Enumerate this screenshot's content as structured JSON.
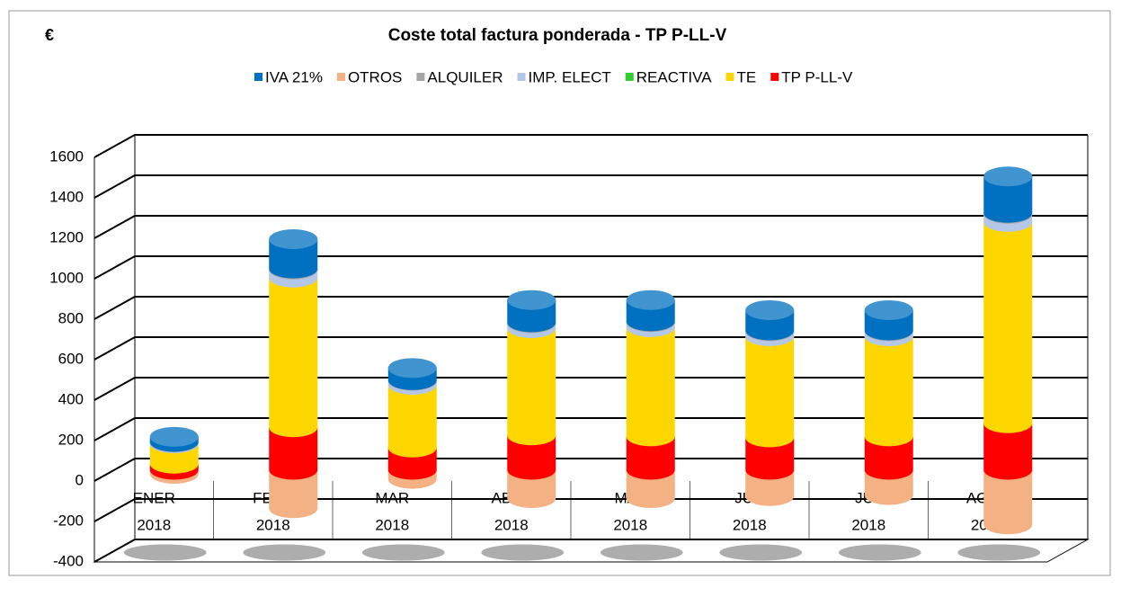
{
  "chart_data": {
    "type": "bar3d_stacked",
    "title": "Coste total factura ponderada - TP P-LL-V",
    "y_label": "€",
    "categories": [
      [
        "ENER",
        "2018"
      ],
      [
        "FEBR",
        "2018"
      ],
      [
        "MAR",
        "2018"
      ],
      [
        "ABRL",
        "2018"
      ],
      [
        "MAY",
        "2018"
      ],
      [
        "JUN",
        "2018"
      ],
      [
        "JUL",
        "2018"
      ],
      [
        "AGTO",
        "2018"
      ]
    ],
    "series": [
      {
        "name": "IVA 21%",
        "color": "#0070c0",
        "values": [
          25,
          145,
          60,
          110,
          105,
          100,
          100,
          180
        ]
      },
      {
        "name": "OTROS",
        "color": "#f4b183",
        "values": [
          -20,
          -190,
          -45,
          -140,
          -140,
          -130,
          -125,
          -270
        ]
      },
      {
        "name": "ALQUILER",
        "color": "#a6a6a6",
        "values": [
          3,
          5,
          3,
          4,
          4,
          4,
          4,
          5
        ]
      },
      {
        "name": "IMP. ELECT",
        "color": "#b4c7e7",
        "values": [
          5,
          40,
          20,
          25,
          25,
          25,
          25,
          40
        ]
      },
      {
        "name": "REACTIVA",
        "color": "#33cc33",
        "values": [
          0,
          0,
          0,
          0,
          0,
          0,
          0,
          0
        ]
      },
      {
        "name": "TE",
        "color": "#ffd700",
        "values": [
          100,
          740,
          310,
          530,
          540,
          500,
          495,
          995
        ]
      },
      {
        "name": "TP P-LL-V",
        "color": "#ff0000",
        "values": [
          30,
          210,
          110,
          170,
          165,
          160,
          165,
          230
        ]
      }
    ],
    "ylim": [
      -400,
      1600
    ],
    "yticks": [
      -400,
      -200,
      0,
      200,
      400,
      600,
      800,
      1000,
      1200,
      1400,
      1600
    ],
    "grid": true
  }
}
